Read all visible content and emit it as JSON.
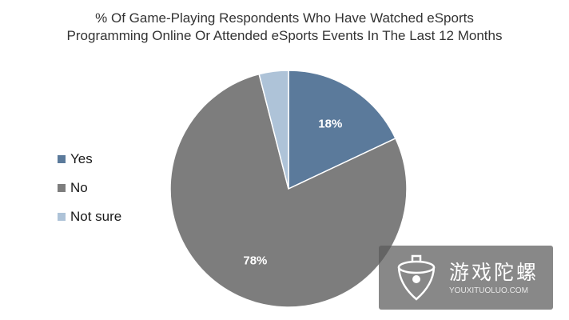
{
  "chart_data": {
    "type": "pie",
    "title_lines": [
      "% Of Game-Playing Respondents Who Have Watched eSports",
      "Programming Online Or Attended eSports Events In The Last 12 Months"
    ],
    "categories": [
      "Yes",
      "No",
      "Not sure"
    ],
    "values": [
      18,
      78,
      4
    ],
    "data_labels": [
      "18%",
      "78%",
      ""
    ],
    "colors": [
      "#5b7a9b",
      "#7d7d7d",
      "#aec3d8"
    ],
    "legend_placement": "left",
    "start_angle_deg": 0,
    "direction": "clockwise"
  },
  "watermark": {
    "name": "游戏陀螺",
    "domain": "YOUXITUOLUO.COM"
  }
}
